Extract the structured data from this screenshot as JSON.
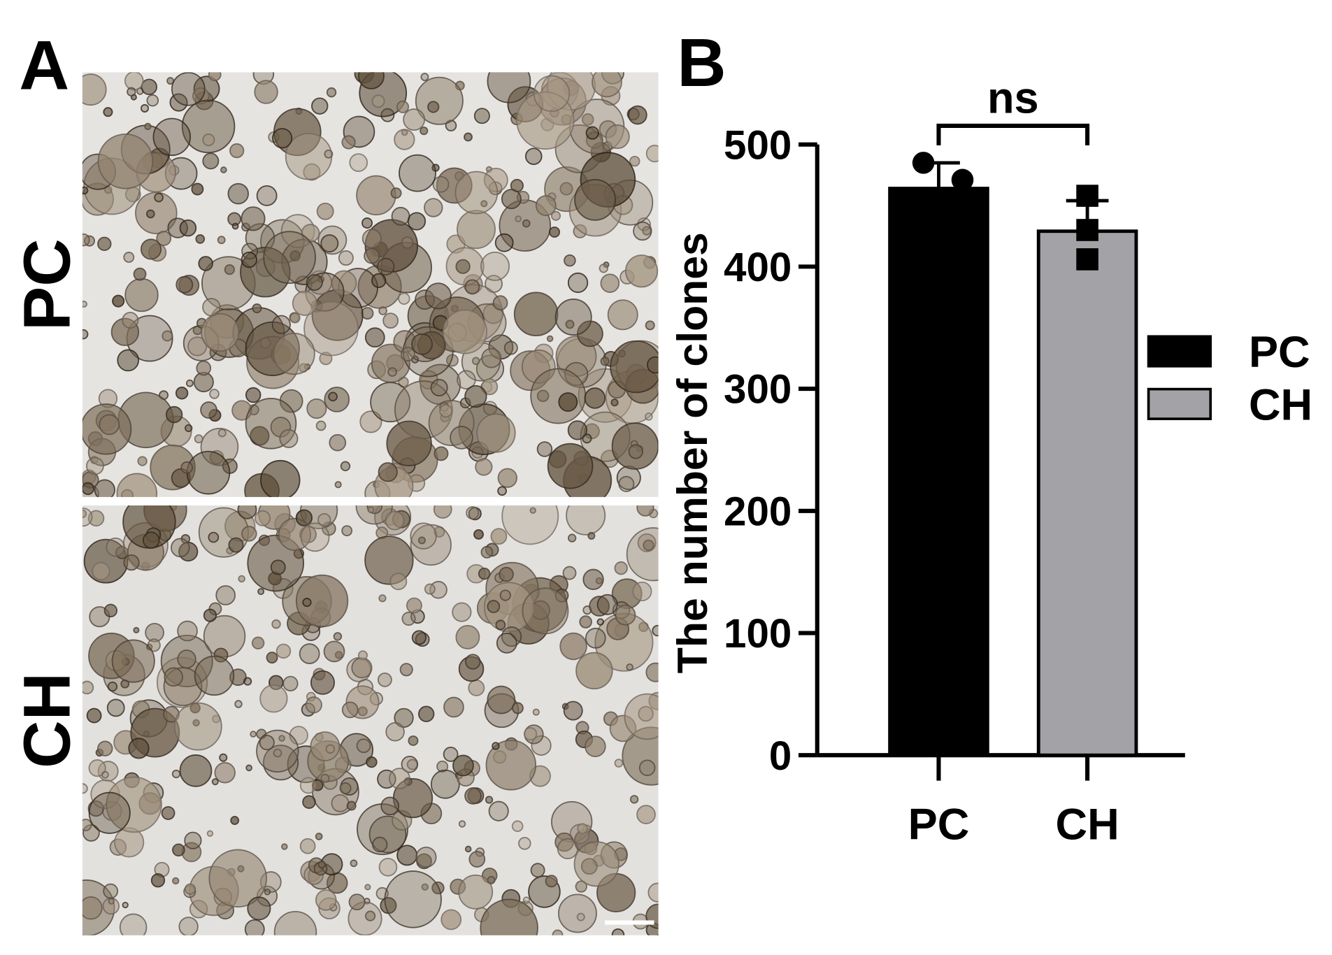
{
  "panel_a": {
    "label": "A",
    "rows": [
      "PC",
      "CH"
    ]
  },
  "chart_data": {
    "type": "bar",
    "panel_label": "B",
    "ylabel": "The number of clones",
    "categories": [
      "PC",
      "CH"
    ],
    "series": [
      {
        "name": "PC",
        "color": "#000000",
        "value": 464,
        "error": 21,
        "points": [
          485,
          471
        ],
        "marker": "circle"
      },
      {
        "name": "CH",
        "color": "#a3a3a7",
        "value": 429,
        "error": 25,
        "points": [
          458,
          430,
          406
        ],
        "marker": "square"
      }
    ],
    "annotation": "ns",
    "ylim": [
      0,
      500
    ],
    "yticks": [
      0,
      100,
      200,
      300,
      400,
      500
    ]
  }
}
